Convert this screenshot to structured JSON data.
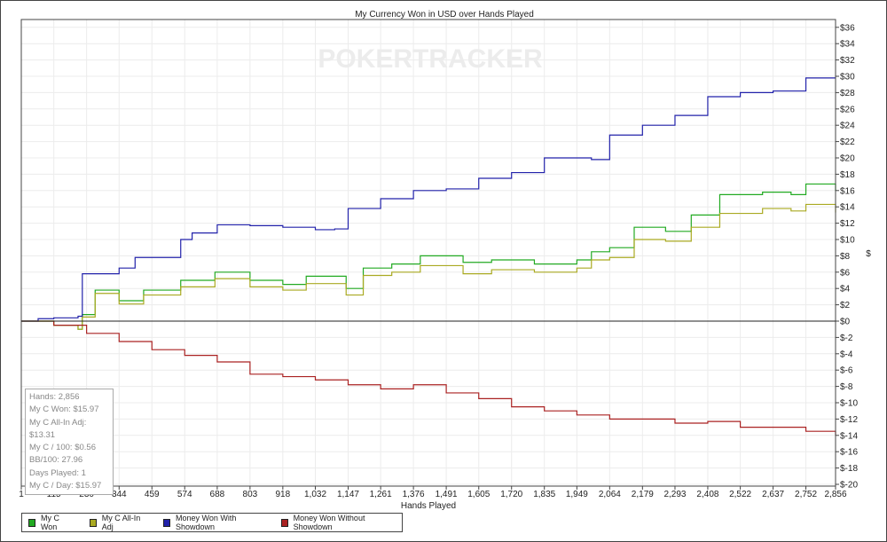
{
  "chart_data": {
    "type": "line",
    "title": "My Currency Won in USD over Hands Played",
    "xlabel": "Hands Played",
    "ylabel": "$",
    "xlim": [
      1,
      2856
    ],
    "ylim": [
      -20,
      36
    ],
    "x_ticks": [
      "1",
      "115",
      "230",
      "344",
      "459",
      "574",
      "688",
      "803",
      "918",
      "1,032",
      "1,147",
      "1,261",
      "1,376",
      "1,491",
      "1,605",
      "1,720",
      "1,835",
      "1,949",
      "2,064",
      "2,179",
      "2,293",
      "2,408",
      "2,522",
      "2,637",
      "2,752",
      "2,856"
    ],
    "x_tick_values": [
      1,
      115,
      230,
      344,
      459,
      574,
      688,
      803,
      918,
      1032,
      1147,
      1261,
      1376,
      1491,
      1605,
      1720,
      1835,
      1949,
      2064,
      2179,
      2293,
      2408,
      2522,
      2637,
      2752,
      2856
    ],
    "y_ticks": [
      "$36",
      "$34",
      "$32",
      "$30",
      "$28",
      "$26",
      "$24",
      "$22",
      "$20",
      "$18",
      "$16",
      "$14",
      "$12",
      "$10",
      "$8",
      "$6",
      "$4",
      "$2",
      "$0",
      "$-2",
      "$-4",
      "$-6",
      "$-8",
      "$-10",
      "$-12",
      "$-14",
      "$-16",
      "$-18",
      "$-20"
    ],
    "y_tick_values": [
      36,
      34,
      32,
      30,
      28,
      26,
      24,
      22,
      20,
      18,
      16,
      14,
      12,
      10,
      8,
      6,
      4,
      2,
      0,
      -2,
      -4,
      -6,
      -8,
      -10,
      -12,
      -14,
      -16,
      -18,
      -20
    ],
    "grid": true,
    "legend_placement": "bottom-left",
    "watermark": "POKERTRACKER",
    "series": [
      {
        "name": "My C Won",
        "color": "#22aa22",
        "x": [
          1,
          115,
          200,
          215,
          260,
          344,
          430,
          459,
          560,
          680,
          803,
          918,
          1000,
          1140,
          1200,
          1300,
          1400,
          1550,
          1650,
          1800,
          1949,
          2000,
          2064,
          2150,
          2260,
          2350,
          2450,
          2600,
          2700,
          2752,
          2856
        ],
        "y": [
          0,
          -0.5,
          -1,
          0.8,
          3.8,
          2.5,
          3.8,
          3.8,
          5,
          6,
          5,
          4.5,
          5.5,
          4,
          6.5,
          7,
          8,
          7.2,
          7.5,
          7,
          7.5,
          8.5,
          9,
          11.5,
          11,
          13,
          15.5,
          15.8,
          15.5,
          16.8,
          15.97
        ]
      },
      {
        "name": "My C All-In Adj",
        "color": "#aaaa22",
        "x": [
          1,
          115,
          200,
          215,
          260,
          344,
          430,
          459,
          560,
          680,
          803,
          918,
          1000,
          1140,
          1200,
          1300,
          1400,
          1550,
          1650,
          1800,
          1949,
          2000,
          2064,
          2150,
          2260,
          2350,
          2450,
          2600,
          2700,
          2752,
          2856
        ],
        "y": [
          0,
          -0.5,
          -1,
          0.5,
          3.4,
          2.1,
          3.2,
          3.2,
          4.2,
          5.2,
          4.2,
          3.8,
          4.6,
          3.2,
          5.6,
          6,
          6.8,
          5.8,
          6.3,
          6,
          6.5,
          7.5,
          7.8,
          10,
          9.8,
          11.5,
          13.2,
          13.8,
          13.5,
          14.3,
          13.31
        ]
      },
      {
        "name": "Money Won With Showdown",
        "color": "#2222aa",
        "x": [
          1,
          60,
          115,
          200,
          215,
          300,
          344,
          400,
          459,
          560,
          600,
          688,
          803,
          918,
          1032,
          1100,
          1147,
          1261,
          1376,
          1491,
          1605,
          1720,
          1835,
          1949,
          2000,
          2064,
          2179,
          2293,
          2408,
          2522,
          2637,
          2700,
          2752,
          2856
        ],
        "y": [
          0,
          0.3,
          0.4,
          0.6,
          5.8,
          5.8,
          6.5,
          7.8,
          7.8,
          10,
          10.8,
          11.8,
          11.7,
          11.5,
          11.2,
          11.3,
          13.8,
          15,
          16,
          16.2,
          17.5,
          18.2,
          20,
          20,
          19.8,
          22.8,
          24,
          25.2,
          27.5,
          28,
          28.2,
          28.2,
          29.8,
          29.8
        ]
      },
      {
        "name": "Money Won Without Showdown",
        "color": "#aa2222",
        "x": [
          1,
          115,
          230,
          344,
          459,
          574,
          688,
          803,
          918,
          1032,
          1147,
          1261,
          1376,
          1491,
          1605,
          1720,
          1835,
          1949,
          2064,
          2179,
          2293,
          2408,
          2522,
          2637,
          2752,
          2856
        ],
        "y": [
          0,
          -0.5,
          -1.5,
          -2.5,
          -3.5,
          -4.2,
          -5,
          -6.5,
          -6.8,
          -7.2,
          -7.8,
          -8.3,
          -7.8,
          -8.8,
          -9.5,
          -10.5,
          -11,
          -11.5,
          -12,
          -12,
          -12.5,
          -12.3,
          -13,
          -13,
          -13.5,
          -14
        ]
      }
    ]
  },
  "stats": [
    "Hands: 2,856",
    "My C Won: $15.97",
    "My C All-In Adj: $13.31",
    "My C / 100: $0.56",
    "BB/100: 27.96",
    "Days Played: 1",
    "My C / Day: $15.97"
  ]
}
